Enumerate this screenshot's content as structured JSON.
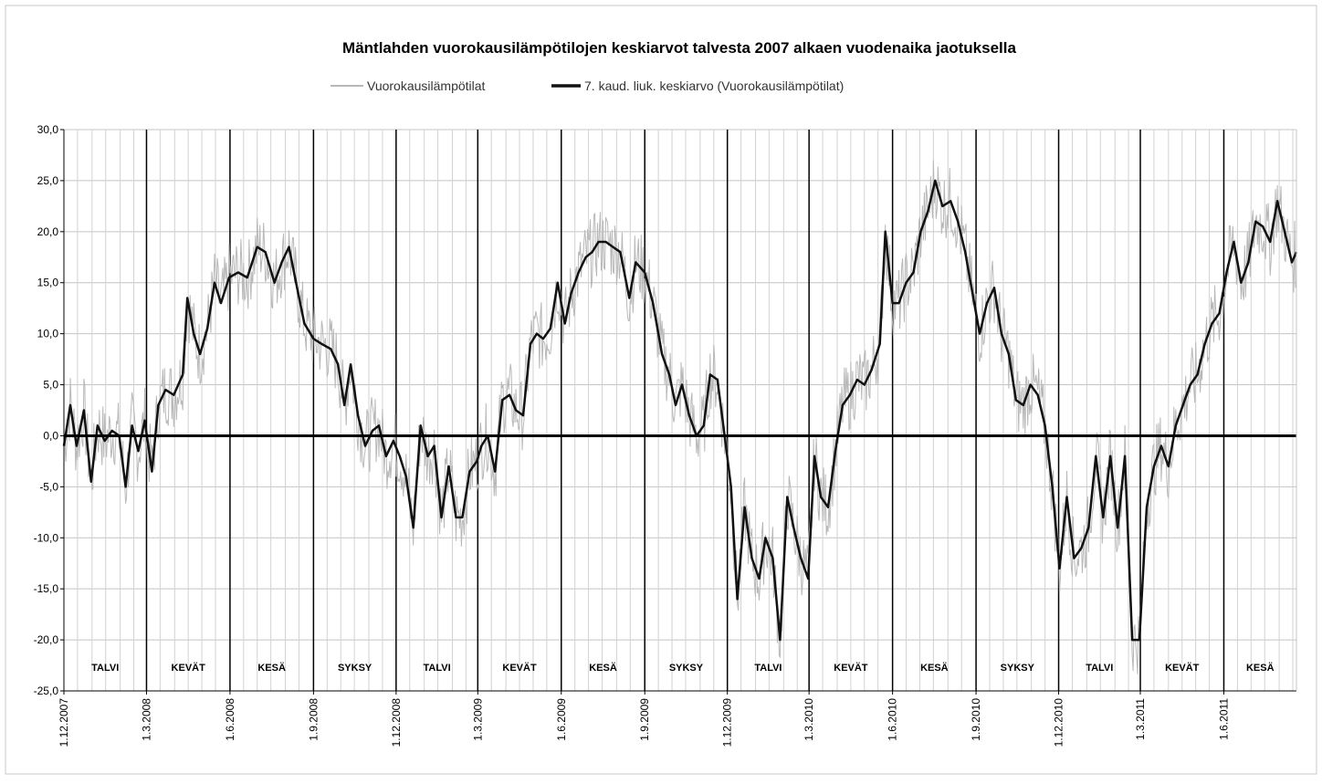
{
  "chart_data": {
    "type": "line",
    "title": "Mäntlahden vuorokausilämpötilojen keskiarvot talvesta 2007 alkaen vuodenaika jaotuksella",
    "legend": [
      {
        "name": "Vuorokausilämpötilat",
        "color": "#b8b8b8"
      },
      {
        "name": "7. kaud. liuk. keskiarvo (Vuorokausilämpötilat)",
        "color": "#111111"
      }
    ],
    "legend_position": "top-center",
    "grid": true,
    "y_axis": {
      "min": -25,
      "max": 30,
      "step": 5,
      "tick_labels": [
        "30,0",
        "25,0",
        "20,0",
        "15,0",
        "10,0",
        "5,0",
        "0,0",
        "-5,0",
        "-10,0",
        "-15,0",
        "-20,0",
        "-25,0"
      ]
    },
    "x_axis": {
      "min": "2007-12-01",
      "max": "2011-08-20",
      "tick_labels": [
        {
          "date": "2007-12-01",
          "label": "1.12.2007"
        },
        {
          "date": "2008-03-01",
          "label": "1.3.2008"
        },
        {
          "date": "2008-06-01",
          "label": "1.6.2008"
        },
        {
          "date": "2008-09-01",
          "label": "1.9.2008"
        },
        {
          "date": "2008-12-01",
          "label": "1.12.2008"
        },
        {
          "date": "2009-03-01",
          "label": "1.3.2009"
        },
        {
          "date": "2009-06-01",
          "label": "1.6.2009"
        },
        {
          "date": "2009-09-01",
          "label": "1.9.2009"
        },
        {
          "date": "2009-12-01",
          "label": "1.12.2009"
        },
        {
          "date": "2010-03-01",
          "label": "1.3.2010"
        },
        {
          "date": "2010-06-01",
          "label": "1.6.2010"
        },
        {
          "date": "2010-09-01",
          "label": "1.9.2010"
        },
        {
          "date": "2010-12-01",
          "label": "1.12.2010"
        },
        {
          "date": "2011-03-01",
          "label": "1.3.2011"
        },
        {
          "date": "2011-06-01",
          "label": "1.6.2011"
        }
      ]
    },
    "seasons": [
      {
        "label": "TALVI",
        "start": "2007-12-01",
        "end": "2008-03-01"
      },
      {
        "label": "KEVÄT",
        "start": "2008-03-01",
        "end": "2008-06-01"
      },
      {
        "label": "KESÄ",
        "start": "2008-06-01",
        "end": "2008-09-01"
      },
      {
        "label": "SYKSY",
        "start": "2008-09-01",
        "end": "2008-12-01"
      },
      {
        "label": "TALVI",
        "start": "2008-12-01",
        "end": "2009-03-01"
      },
      {
        "label": "KEVÄT",
        "start": "2009-03-01",
        "end": "2009-06-01"
      },
      {
        "label": "KESÄ",
        "start": "2009-06-01",
        "end": "2009-09-01"
      },
      {
        "label": "SYKSY",
        "start": "2009-09-01",
        "end": "2009-12-01"
      },
      {
        "label": "TALVI",
        "start": "2009-12-01",
        "end": "2010-03-01"
      },
      {
        "label": "KEVÄT",
        "start": "2010-03-01",
        "end": "2010-06-01"
      },
      {
        "label": "KESÄ",
        "start": "2010-06-01",
        "end": "2010-09-01"
      },
      {
        "label": "SYKSY",
        "start": "2010-09-01",
        "end": "2010-12-01"
      },
      {
        "label": "TALVI",
        "start": "2010-12-01",
        "end": "2011-03-01"
      },
      {
        "label": "KEVÄT",
        "start": "2011-03-01",
        "end": "2011-06-01"
      },
      {
        "label": "KESÄ",
        "start": "2011-06-01",
        "end": "2011-08-20"
      }
    ],
    "series": [
      {
        "name": "7. kaud. liuk. keskiarvo (Vuorokausilämpötilat)",
        "points": [
          [
            "2007-12-01",
            -1
          ],
          [
            "2007-12-08",
            3
          ],
          [
            "2007-12-15",
            -1
          ],
          [
            "2007-12-23",
            2.5
          ],
          [
            "2007-12-31",
            -4.5
          ],
          [
            "2008-01-07",
            1
          ],
          [
            "2008-01-15",
            -0.5
          ],
          [
            "2008-01-23",
            0.5
          ],
          [
            "2008-01-31",
            0
          ],
          [
            "2008-02-07",
            -5
          ],
          [
            "2008-02-14",
            1
          ],
          [
            "2008-02-21",
            -1.5
          ],
          [
            "2008-02-28",
            1.5
          ],
          [
            "2008-03-07",
            -3.5
          ],
          [
            "2008-03-14",
            3
          ],
          [
            "2008-03-22",
            4.5
          ],
          [
            "2008-03-31",
            4
          ],
          [
            "2008-04-10",
            6
          ],
          [
            "2008-04-15",
            13.5
          ],
          [
            "2008-04-22",
            10
          ],
          [
            "2008-04-29",
            8
          ],
          [
            "2008-05-07",
            10.5
          ],
          [
            "2008-05-15",
            15
          ],
          [
            "2008-05-22",
            13
          ],
          [
            "2008-05-31",
            15.5
          ],
          [
            "2008-06-10",
            16
          ],
          [
            "2008-06-20",
            15.5
          ],
          [
            "2008-07-01",
            18.5
          ],
          [
            "2008-07-10",
            18
          ],
          [
            "2008-07-20",
            15
          ],
          [
            "2008-07-28",
            17
          ],
          [
            "2008-08-05",
            18.5
          ],
          [
            "2008-08-15",
            14
          ],
          [
            "2008-08-22",
            11
          ],
          [
            "2008-09-01",
            9.5
          ],
          [
            "2008-09-10",
            9
          ],
          [
            "2008-09-20",
            8.5
          ],
          [
            "2008-09-28",
            7
          ],
          [
            "2008-10-05",
            3
          ],
          [
            "2008-10-12",
            7
          ],
          [
            "2008-10-20",
            2
          ],
          [
            "2008-10-28",
            -1
          ],
          [
            "2008-11-05",
            0.5
          ],
          [
            "2008-11-12",
            1
          ],
          [
            "2008-11-20",
            -2
          ],
          [
            "2008-11-28",
            -0.5
          ],
          [
            "2008-12-05",
            -2
          ],
          [
            "2008-12-12",
            -4
          ],
          [
            "2008-12-20",
            -9
          ],
          [
            "2008-12-28",
            1
          ],
          [
            "2009-01-05",
            -2
          ],
          [
            "2009-01-12",
            -1
          ],
          [
            "2009-01-20",
            -8
          ],
          [
            "2009-01-28",
            -3
          ],
          [
            "2009-02-05",
            -8
          ],
          [
            "2009-02-12",
            -8
          ],
          [
            "2009-02-20",
            -3.5
          ],
          [
            "2009-02-28",
            -2.5
          ],
          [
            "2009-03-05",
            -1
          ],
          [
            "2009-03-12",
            0
          ],
          [
            "2009-03-20",
            -3.5
          ],
          [
            "2009-03-28",
            3.5
          ],
          [
            "2009-04-05",
            4
          ],
          [
            "2009-04-12",
            2.5
          ],
          [
            "2009-04-20",
            2
          ],
          [
            "2009-04-28",
            9
          ],
          [
            "2009-05-05",
            10
          ],
          [
            "2009-05-12",
            9.5
          ],
          [
            "2009-05-20",
            10.5
          ],
          [
            "2009-05-28",
            15
          ],
          [
            "2009-06-05",
            11
          ],
          [
            "2009-06-12",
            14
          ],
          [
            "2009-06-20",
            16
          ],
          [
            "2009-06-28",
            17.5
          ],
          [
            "2009-07-05",
            18
          ],
          [
            "2009-07-12",
            19
          ],
          [
            "2009-07-20",
            19
          ],
          [
            "2009-07-28",
            18.5
          ],
          [
            "2009-08-05",
            18
          ],
          [
            "2009-08-15",
            13.5
          ],
          [
            "2009-08-22",
            17
          ],
          [
            "2009-09-01",
            16
          ],
          [
            "2009-09-10",
            13
          ],
          [
            "2009-09-20",
            8
          ],
          [
            "2009-09-28",
            6
          ],
          [
            "2009-10-05",
            3
          ],
          [
            "2009-10-12",
            5
          ],
          [
            "2009-10-20",
            2
          ],
          [
            "2009-10-28",
            0
          ],
          [
            "2009-11-05",
            1
          ],
          [
            "2009-11-12",
            6
          ],
          [
            "2009-11-20",
            5.5
          ],
          [
            "2009-11-28",
            0
          ],
          [
            "2009-12-05",
            -5
          ],
          [
            "2009-12-12",
            -16
          ],
          [
            "2009-12-20",
            -7
          ],
          [
            "2009-12-28",
            -12
          ],
          [
            "2010-01-05",
            -14
          ],
          [
            "2010-01-12",
            -10
          ],
          [
            "2010-01-20",
            -12
          ],
          [
            "2010-01-28",
            -20
          ],
          [
            "2010-02-05",
            -6
          ],
          [
            "2010-02-12",
            -9
          ],
          [
            "2010-02-20",
            -12
          ],
          [
            "2010-02-28",
            -14
          ],
          [
            "2010-03-07",
            -2
          ],
          [
            "2010-03-14",
            -6
          ],
          [
            "2010-03-22",
            -7
          ],
          [
            "2010-03-30",
            -1.5
          ],
          [
            "2010-04-07",
            3
          ],
          [
            "2010-04-15",
            4
          ],
          [
            "2010-04-23",
            5.5
          ],
          [
            "2010-05-01",
            5
          ],
          [
            "2010-05-09",
            6.5
          ],
          [
            "2010-05-18",
            9
          ],
          [
            "2010-05-24",
            20
          ],
          [
            "2010-06-01",
            13
          ],
          [
            "2010-06-08",
            13
          ],
          [
            "2010-06-16",
            15
          ],
          [
            "2010-06-24",
            16
          ],
          [
            "2010-07-02",
            20
          ],
          [
            "2010-07-10",
            22
          ],
          [
            "2010-07-18",
            25
          ],
          [
            "2010-07-26",
            22.5
          ],
          [
            "2010-08-04",
            23
          ],
          [
            "2010-08-12",
            21
          ],
          [
            "2010-08-20",
            18
          ],
          [
            "2010-08-28",
            14
          ],
          [
            "2010-09-05",
            10
          ],
          [
            "2010-09-13",
            13
          ],
          [
            "2010-09-21",
            14.5
          ],
          [
            "2010-09-29",
            10
          ],
          [
            "2010-10-07",
            8
          ],
          [
            "2010-10-15",
            3.5
          ],
          [
            "2010-10-23",
            3
          ],
          [
            "2010-10-31",
            5
          ],
          [
            "2010-11-08",
            4
          ],
          [
            "2010-11-16",
            1
          ],
          [
            "2010-11-24",
            -5
          ],
          [
            "2010-12-02",
            -13
          ],
          [
            "2010-12-10",
            -6
          ],
          [
            "2010-12-18",
            -12
          ],
          [
            "2010-12-26",
            -11
          ],
          [
            "2011-01-03",
            -9
          ],
          [
            "2011-01-11",
            -2
          ],
          [
            "2011-01-19",
            -8
          ],
          [
            "2011-01-27",
            -2
          ],
          [
            "2011-02-04",
            -9
          ],
          [
            "2011-02-12",
            -2
          ],
          [
            "2011-02-20",
            -20
          ],
          [
            "2011-02-28",
            -20
          ],
          [
            "2011-03-08",
            -7
          ],
          [
            "2011-03-16",
            -3
          ],
          [
            "2011-03-24",
            -1
          ],
          [
            "2011-04-01",
            -3
          ],
          [
            "2011-04-09",
            1
          ],
          [
            "2011-04-17",
            3
          ],
          [
            "2011-04-25",
            5
          ],
          [
            "2011-05-03",
            6
          ],
          [
            "2011-05-11",
            9
          ],
          [
            "2011-05-19",
            11
          ],
          [
            "2011-05-27",
            12
          ],
          [
            "2011-06-04",
            16
          ],
          [
            "2011-06-12",
            19
          ],
          [
            "2011-06-20",
            15
          ],
          [
            "2011-06-28",
            17
          ],
          [
            "2011-07-06",
            21
          ],
          [
            "2011-07-14",
            20.5
          ],
          [
            "2011-07-22",
            19
          ],
          [
            "2011-07-30",
            23
          ],
          [
            "2011-08-07",
            20
          ],
          [
            "2011-08-15",
            17
          ],
          [
            "2011-08-20",
            18
          ]
        ]
      }
    ]
  }
}
